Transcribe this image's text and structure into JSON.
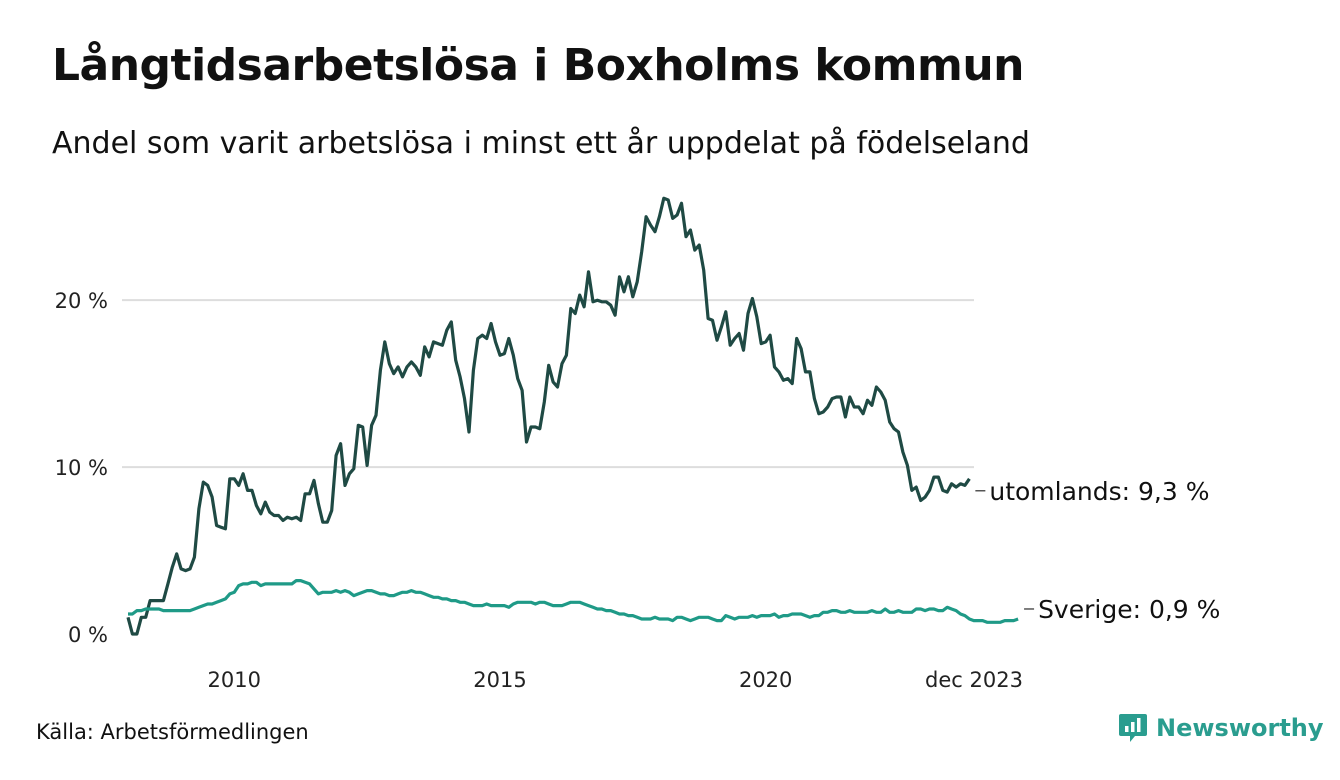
{
  "title": "Långtidsarbetslösa i Boxholms kommun",
  "subtitle": "Andel som varit arbetslösa i minst ett år uppdelat på födelseland",
  "source": "Källa: Arbetsförmedlingen",
  "brand": {
    "name": "Newsworthy",
    "icon": "newsworthy-logo-icon"
  },
  "colors": {
    "utomlands": "#1f4a44",
    "sverige": "#1f9a87",
    "grid": "#dddddd"
  },
  "chart_data": {
    "type": "line",
    "title": "Långtidsarbetslösa i Boxholms kommun",
    "xlabel": "",
    "ylabel": "",
    "x_start": 2008.0,
    "x_step": 0.08333,
    "xlim": [
      2008.0,
      2023.92
    ],
    "ylim": [
      0,
      26
    ],
    "y_ticks": [
      {
        "value": 0,
        "label": "0 %"
      },
      {
        "value": 10,
        "label": "10 %"
      },
      {
        "value": 20,
        "label": "20 %"
      }
    ],
    "x_ticks": [
      {
        "value": 2010.0,
        "label": "2010"
      },
      {
        "value": 2015.0,
        "label": "2015"
      },
      {
        "value": 2020.0,
        "label": "2020"
      },
      {
        "value": 2023.92,
        "label": "dec 2023"
      }
    ],
    "grid": true,
    "series": [
      {
        "name": "utomlands",
        "end_label": "utomlands: 9,3 %",
        "values": [
          1.0,
          0.0,
          0.0,
          1.0,
          1.0,
          2.0,
          2.0,
          2.0,
          2.0,
          3.0,
          4.0,
          4.8,
          3.9,
          3.8,
          3.9,
          4.6,
          7.5,
          9.1,
          8.9,
          8.2,
          6.5,
          6.4,
          6.3,
          9.3,
          9.3,
          8.9,
          9.6,
          8.6,
          8.6,
          7.7,
          7.2,
          7.9,
          7.3,
          7.1,
          7.1,
          6.8,
          7.0,
          6.9,
          7.0,
          6.8,
          8.4,
          8.4,
          9.2,
          7.8,
          6.7,
          6.7,
          7.4,
          10.7,
          11.4,
          8.9,
          9.6,
          9.9,
          12.5,
          12.4,
          10.1,
          12.5,
          13.1,
          15.8,
          17.5,
          16.2,
          15.6,
          16.0,
          15.4,
          16.0,
          16.3,
          16.0,
          15.5,
          17.2,
          16.6,
          17.5,
          17.4,
          17.3,
          18.2,
          18.7,
          16.4,
          15.4,
          14.1,
          12.1,
          15.8,
          17.7,
          17.9,
          17.7,
          18.6,
          17.5,
          16.7,
          16.8,
          17.7,
          16.7,
          15.3,
          14.6,
          11.5,
          12.4,
          12.4,
          12.3,
          13.9,
          16.1,
          15.1,
          14.8,
          16.2,
          16.7,
          19.5,
          19.2,
          20.3,
          19.6,
          21.7,
          19.9,
          20.0,
          19.9,
          19.9,
          19.7,
          19.1,
          21.4,
          20.5,
          21.4,
          20.2,
          21.1,
          22.9,
          25.0,
          24.5,
          24.1,
          25.0,
          26.1,
          26.0,
          24.9,
          25.1,
          25.8,
          23.8,
          24.2,
          23.0,
          23.3,
          21.8,
          18.9,
          18.8,
          17.6,
          18.4,
          19.3,
          17.3,
          17.7,
          18.0,
          17.0,
          19.2,
          20.1,
          19.0,
          17.4,
          17.5,
          17.9,
          16.0,
          15.7,
          15.2,
          15.3,
          15.0,
          17.7,
          17.1,
          15.7,
          15.7,
          14.1,
          13.2,
          13.3,
          13.6,
          14.1,
          14.2,
          14.2,
          13.0,
          14.2,
          13.6,
          13.6,
          13.2,
          14.0,
          13.7,
          14.8,
          14.5,
          14.0,
          12.7,
          12.3,
          12.1,
          10.9,
          10.1,
          8.6,
          8.8,
          8.0,
          8.2,
          8.6,
          9.4,
          9.4,
          8.6,
          8.5,
          9.0,
          8.8,
          9.0,
          8.9,
          9.3
        ]
      },
      {
        "name": "Sverige",
        "end_label": "Sverige: 0,9 %",
        "values": [
          1.2,
          1.2,
          1.4,
          1.4,
          1.5,
          1.5,
          1.5,
          1.5,
          1.4,
          1.4,
          1.4,
          1.4,
          1.4,
          1.4,
          1.4,
          1.5,
          1.6,
          1.7,
          1.8,
          1.8,
          1.9,
          2.0,
          2.1,
          2.4,
          2.5,
          2.9,
          3.0,
          3.0,
          3.1,
          3.1,
          2.9,
          3.0,
          3.0,
          3.0,
          3.0,
          3.0,
          3.0,
          3.0,
          3.2,
          3.2,
          3.1,
          3.0,
          2.7,
          2.4,
          2.5,
          2.5,
          2.5,
          2.6,
          2.5,
          2.6,
          2.5,
          2.3,
          2.4,
          2.5,
          2.6,
          2.6,
          2.5,
          2.4,
          2.4,
          2.3,
          2.3,
          2.4,
          2.5,
          2.5,
          2.6,
          2.5,
          2.5,
          2.4,
          2.3,
          2.2,
          2.2,
          2.1,
          2.1,
          2.0,
          2.0,
          1.9,
          1.9,
          1.8,
          1.7,
          1.7,
          1.7,
          1.8,
          1.7,
          1.7,
          1.7,
          1.7,
          1.6,
          1.8,
          1.9,
          1.9,
          1.9,
          1.9,
          1.8,
          1.9,
          1.9,
          1.8,
          1.7,
          1.7,
          1.7,
          1.8,
          1.9,
          1.9,
          1.9,
          1.8,
          1.7,
          1.6,
          1.5,
          1.5,
          1.4,
          1.4,
          1.3,
          1.2,
          1.2,
          1.1,
          1.1,
          1.0,
          0.9,
          0.9,
          0.9,
          1.0,
          0.9,
          0.9,
          0.9,
          0.8,
          1.0,
          1.0,
          0.9,
          0.8,
          0.9,
          1.0,
          1.0,
          1.0,
          0.9,
          0.8,
          0.8,
          1.1,
          1.0,
          0.9,
          1.0,
          1.0,
          1.0,
          1.1,
          1.0,
          1.1,
          1.1,
          1.1,
          1.2,
          1.0,
          1.1,
          1.1,
          1.2,
          1.2,
          1.2,
          1.1,
          1.0,
          1.1,
          1.1,
          1.3,
          1.3,
          1.4,
          1.4,
          1.3,
          1.3,
          1.4,
          1.3,
          1.3,
          1.3,
          1.3,
          1.4,
          1.3,
          1.3,
          1.5,
          1.3,
          1.3,
          1.4,
          1.3,
          1.3,
          1.3,
          1.5,
          1.5,
          1.4,
          1.5,
          1.5,
          1.4,
          1.4,
          1.6,
          1.5,
          1.4,
          1.2,
          1.1,
          0.9,
          0.8,
          0.8,
          0.8,
          0.7,
          0.7,
          0.7,
          0.7,
          0.8,
          0.8,
          0.8,
          0.9
        ]
      }
    ]
  }
}
